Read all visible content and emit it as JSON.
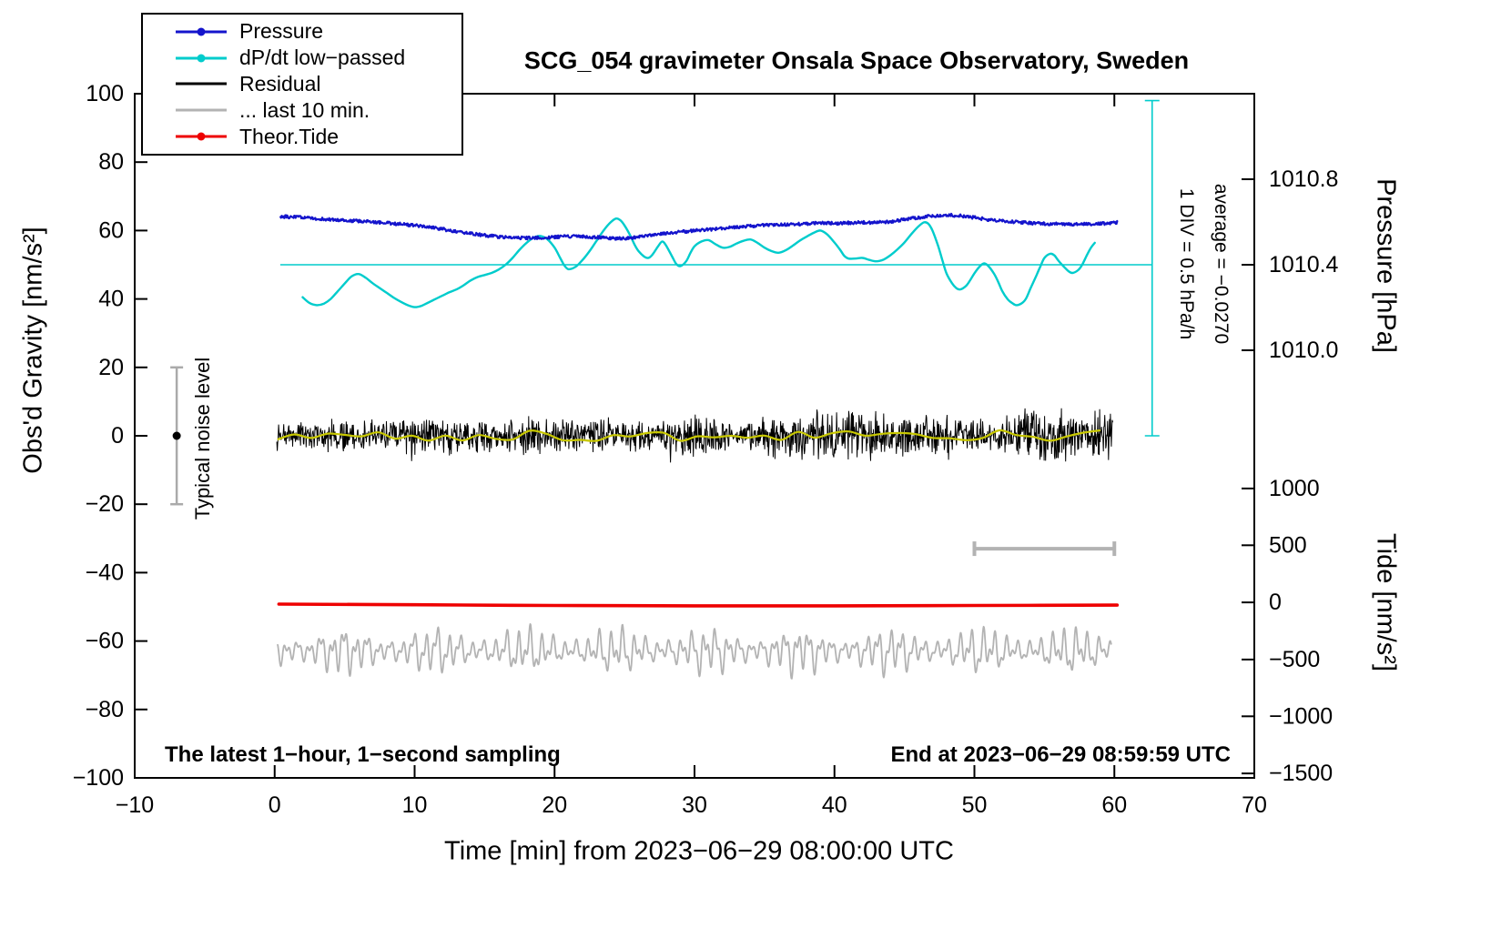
{
  "title": "SCG_054 gravimeter Onsala Space Observatory, Sweden",
  "texts": {
    "xlabel": "Time [min] from 2023−06−29 08:00:00 UTC",
    "ylabel_left": "Obs'd Gravity [nm/s²]",
    "footer_left": "The latest 1−hour, 1−second sampling",
    "footer_right": "End at 2023−06−29 08:59:59 UTC"
  },
  "legend": {
    "items": [
      {
        "label": "Pressure",
        "color": "#1414cc",
        "marker": true
      },
      {
        "label": "dP/dt low−passed",
        "color": "#00cccc",
        "marker": true
      },
      {
        "label": "Residual",
        "color": "#000000",
        "marker": false
      },
      {
        "label": "... last 10 min.",
        "color": "#b3b3b3",
        "marker": false
      },
      {
        "label": "Theor.Tide",
        "color": "#ee0000",
        "marker": true
      }
    ]
  },
  "chart_data": {
    "type": "line",
    "title": "SCG_054 gravimeter Onsala Space Observatory, Sweden",
    "xlabel": "Time [min] from 2023−06−29 08:00:00 UTC",
    "ylabel": "Obs'd Gravity [nm/s²]",
    "xlim": [
      -10,
      70
    ],
    "ylim": [
      -100,
      100
    ],
    "grid": false,
    "legend_position": "top-left",
    "x_ticks": [
      {
        "v": -10,
        "label": "−10"
      },
      {
        "v": 0,
        "label": "0"
      },
      {
        "v": 10,
        "label": "10"
      },
      {
        "v": 20,
        "label": "20"
      },
      {
        "v": 30,
        "label": "30"
      },
      {
        "v": 40,
        "label": "40"
      },
      {
        "v": 50,
        "label": "50"
      },
      {
        "v": 60,
        "label": "60"
      },
      {
        "v": 70,
        "label": "70"
      }
    ],
    "y_ticks": [
      {
        "v": 100,
        "label": "100"
      },
      {
        "v": 80,
        "label": "80"
      },
      {
        "v": 60,
        "label": "60"
      },
      {
        "v": 40,
        "label": "40"
      },
      {
        "v": 20,
        "label": "20"
      },
      {
        "v": 0,
        "label": "0"
      },
      {
        "v": -20,
        "label": "−20"
      },
      {
        "v": -40,
        "label": "−40"
      },
      {
        "v": -60,
        "label": "−60"
      },
      {
        "v": -80,
        "label": "−80"
      },
      {
        "v": -100,
        "label": "−100"
      }
    ],
    "pressure_axis": {
      "title": "Pressure [hPa]",
      "ticks": [
        {
          "gravity": 75,
          "label": "1010.8"
        },
        {
          "gravity": 50,
          "label": "1010.4"
        },
        {
          "gravity": 25,
          "label": "1010.0"
        }
      ]
    },
    "tide_axis": {
      "title": "Tide [nm/s²]",
      "ticks": [
        {
          "gravity": -15.4,
          "label": "1000"
        },
        {
          "gravity": -32.0,
          "label": "500"
        },
        {
          "gravity": -48.7,
          "label": "0"
        },
        {
          "gravity": -65.4,
          "label": "−500"
        },
        {
          "gravity": -82.0,
          "label": "−1000"
        },
        {
          "gravity": -98.7,
          "label": "−1500"
        }
      ]
    },
    "annotations": {
      "div_scale": "1 DIV = 0.5 hPa/h",
      "average": "average = −0.0270",
      "noise_label": "Typical noise level",
      "noise_bar": {
        "x": -7,
        "from": -20,
        "to": 20,
        "dot": 0,
        "color": "#aaaaaa"
      },
      "window_bar": {
        "x_from": 50,
        "x_to": 60,
        "gravity": -33,
        "color": "#b3b3b3"
      },
      "dpdt_marker": {
        "x": 62.7,
        "g_from": 0,
        "g_to": 98,
        "color": "#00cccc"
      },
      "dpdt_ref_line": {
        "gravity": 50,
        "x_from": 0.4,
        "x_to": 62.7,
        "color": "#00cccc"
      }
    },
    "series": {
      "pressure": {
        "name": "Pressure",
        "color": "#1414cc",
        "width": 2.2,
        "noise_amp": 0.45,
        "noise_seed": 6,
        "points": [
          [
            0.4,
            64.2
          ],
          [
            1,
            64.0
          ],
          [
            2,
            63.8
          ],
          [
            3,
            63.5
          ],
          [
            4,
            63.2
          ],
          [
            5,
            63.0
          ],
          [
            6,
            62.8
          ],
          [
            7,
            62.5
          ],
          [
            8,
            62.2
          ],
          [
            9,
            61.9
          ],
          [
            10,
            61.5
          ],
          [
            11,
            61.0
          ],
          [
            12,
            60.4
          ],
          [
            13,
            59.7
          ],
          [
            14,
            59.1
          ],
          [
            15,
            58.6
          ],
          [
            16,
            58.2
          ],
          [
            17,
            57.9
          ],
          [
            18,
            57.8
          ],
          [
            19,
            57.9
          ],
          [
            20,
            58.1
          ],
          [
            21,
            58.3
          ],
          [
            22,
            58.3
          ],
          [
            23,
            58.0
          ],
          [
            24,
            57.8
          ],
          [
            25,
            57.6
          ],
          [
            26,
            58.1
          ],
          [
            27,
            58.7
          ],
          [
            28,
            59.2
          ],
          [
            29,
            59.6
          ],
          [
            30,
            60.0
          ],
          [
            31,
            60.3
          ],
          [
            32,
            60.6
          ],
          [
            33,
            61.0
          ],
          [
            34,
            61.3
          ],
          [
            35,
            61.6
          ],
          [
            36,
            61.8
          ],
          [
            37,
            61.8
          ],
          [
            38,
            62.0
          ],
          [
            39,
            62.2
          ],
          [
            40,
            62.1
          ],
          [
            41,
            62.2
          ],
          [
            42,
            62.4
          ],
          [
            43,
            62.3
          ],
          [
            44,
            62.6
          ],
          [
            45,
            63.2
          ],
          [
            46,
            63.8
          ],
          [
            47,
            64.3
          ],
          [
            48,
            64.6
          ],
          [
            49,
            64.3
          ],
          [
            50,
            63.8
          ],
          [
            51,
            63.2
          ],
          [
            52,
            62.8
          ],
          [
            53,
            62.5
          ],
          [
            54,
            62.2
          ],
          [
            55,
            62.0
          ],
          [
            56,
            61.9
          ],
          [
            57,
            61.8
          ],
          [
            58,
            61.9
          ],
          [
            59,
            62.0
          ],
          [
            60.2,
            62.4
          ]
        ]
      },
      "dpdt": {
        "name": "dP/dt low−passed",
        "color": "#00cccc",
        "width": 2.4,
        "points": [
          [
            2,
            40.5
          ],
          [
            2.5,
            38.8
          ],
          [
            3,
            38.2
          ],
          [
            3.5,
            38.6
          ],
          [
            4,
            40
          ],
          [
            4.5,
            42.2
          ],
          [
            5,
            44.5
          ],
          [
            5.5,
            46.6
          ],
          [
            6,
            47.3
          ],
          [
            6.5,
            46.2
          ],
          [
            7,
            44.6
          ],
          [
            7.5,
            43.2
          ],
          [
            8,
            41.8
          ],
          [
            8.5,
            40.4
          ],
          [
            9,
            39.2
          ],
          [
            9.5,
            38.2
          ],
          [
            10,
            37.6
          ],
          [
            10.5,
            38
          ],
          [
            11,
            39
          ],
          [
            11.5,
            40
          ],
          [
            12,
            41
          ],
          [
            12.5,
            42
          ],
          [
            13,
            42.8
          ],
          [
            13.5,
            44
          ],
          [
            14,
            45.4
          ],
          [
            14.5,
            46.4
          ],
          [
            15,
            47
          ],
          [
            15.5,
            47.6
          ],
          [
            16,
            48.6
          ],
          [
            16.5,
            50
          ],
          [
            17,
            52
          ],
          [
            17.5,
            54.4
          ],
          [
            18,
            56.4
          ],
          [
            18.5,
            57.9
          ],
          [
            19,
            58.4
          ],
          [
            19.5,
            57.4
          ],
          [
            20,
            55
          ],
          [
            20.4,
            52
          ],
          [
            20.7,
            49.8
          ],
          [
            21,
            48.7
          ],
          [
            21.5,
            49.4
          ],
          [
            22,
            51.4
          ],
          [
            22.5,
            54
          ],
          [
            23,
            57
          ],
          [
            23.5,
            60
          ],
          [
            24,
            62.4
          ],
          [
            24.4,
            63.5
          ],
          [
            24.7,
            63
          ],
          [
            25,
            61.5
          ],
          [
            25.4,
            58.6
          ],
          [
            25.7,
            56
          ],
          [
            26,
            54
          ],
          [
            26.4,
            52.4
          ],
          [
            26.7,
            52
          ],
          [
            27,
            53
          ],
          [
            27.4,
            55.4
          ],
          [
            27.7,
            56.8
          ],
          [
            28,
            55.4
          ],
          [
            28.4,
            52.4
          ],
          [
            28.7,
            50.2
          ],
          [
            29,
            49.6
          ],
          [
            29.4,
            51
          ],
          [
            29.7,
            53.4
          ],
          [
            30,
            55.4
          ],
          [
            30.5,
            56.8
          ],
          [
            31,
            57.2
          ],
          [
            31.5,
            56
          ],
          [
            32,
            55
          ],
          [
            32.5,
            55.2
          ],
          [
            33,
            56.2
          ],
          [
            33.5,
            57
          ],
          [
            34,
            57.4
          ],
          [
            34.5,
            56.4
          ],
          [
            35,
            55
          ],
          [
            35.5,
            54
          ],
          [
            36,
            53.5
          ],
          [
            36.5,
            54.2
          ],
          [
            37,
            55.5
          ],
          [
            37.5,
            57
          ],
          [
            38,
            58.2
          ],
          [
            38.5,
            59.3
          ],
          [
            39,
            60
          ],
          [
            39.5,
            58.8
          ],
          [
            40,
            56.5
          ],
          [
            40.4,
            54.4
          ],
          [
            40.7,
            52.6
          ],
          [
            41,
            51.8
          ],
          [
            41.5,
            51.8
          ],
          [
            42,
            52
          ],
          [
            42.5,
            51.4
          ],
          [
            43,
            51
          ],
          [
            43.5,
            51.5
          ],
          [
            44,
            52.8
          ],
          [
            44.5,
            54.5
          ],
          [
            45,
            56.5
          ],
          [
            45.5,
            59
          ],
          [
            46,
            61.2
          ],
          [
            46.4,
            62.4
          ],
          [
            46.7,
            62
          ],
          [
            47,
            60
          ],
          [
            47.4,
            55.6
          ],
          [
            47.7,
            51.5
          ],
          [
            48,
            47.5
          ],
          [
            48.4,
            44.6
          ],
          [
            48.7,
            43.2
          ],
          [
            49,
            42.8
          ],
          [
            49.4,
            43.8
          ],
          [
            49.7,
            45.5
          ],
          [
            50,
            47.5
          ],
          [
            50.4,
            49.6
          ],
          [
            50.7,
            50.4
          ],
          [
            51,
            49.6
          ],
          [
            51.4,
            47.4
          ],
          [
            51.7,
            45
          ],
          [
            52,
            42.2
          ],
          [
            52.4,
            39.8
          ],
          [
            52.7,
            38.8
          ],
          [
            53,
            38.2
          ],
          [
            53.4,
            38.8
          ],
          [
            53.7,
            40.2
          ],
          [
            54,
            43
          ],
          [
            54.4,
            46.6
          ],
          [
            54.7,
            49.4
          ],
          [
            55,
            52
          ],
          [
            55.4,
            53.2
          ],
          [
            55.7,
            52.8
          ],
          [
            56,
            51.2
          ],
          [
            56.4,
            49.4
          ],
          [
            56.7,
            48.2
          ],
          [
            57,
            47.6
          ],
          [
            57.4,
            48.4
          ],
          [
            57.7,
            50
          ],
          [
            58,
            52.5
          ],
          [
            58.3,
            54.8
          ],
          [
            58.6,
            56.4
          ]
        ]
      },
      "residual": {
        "name": "Residual",
        "color": "#000000",
        "width": 1,
        "center": 0,
        "seed": 29,
        "x_from": 0.15,
        "x_to": 59.9,
        "env_min": 2.8,
        "env_span": 3.4,
        "spike_prob": 0.006,
        "spike_gain": 2.1
      },
      "residual_smooth": {
        "name": "residual low-passed",
        "color": "#c8c800",
        "width": 2.2,
        "center": 0,
        "amp": 1.6,
        "seed": 8,
        "x_from": 0.2,
        "x_to": 59.8
      },
      "last10": {
        "name": "... last 10 min.",
        "color": "#b3b3b3",
        "width": 1.8,
        "center": -62.8,
        "seed": 54,
        "x_from": 0.2,
        "x_to": 59.8,
        "harmonics": [
          [
            4.2,
            0.83
          ],
          [
            2.8,
            0.41
          ],
          [
            1.6,
            1.65
          ]
        ],
        "mod_period": 6.5,
        "mod_depth": 0.3
      },
      "tide": {
        "name": "Theor.Tide",
        "color": "#ee0000",
        "width": 3.6,
        "points": [
          [
            0.3,
            -49.2
          ],
          [
            10,
            -49.4
          ],
          [
            20,
            -49.6
          ],
          [
            30,
            -49.7
          ],
          [
            40,
            -49.7
          ],
          [
            50,
            -49.6
          ],
          [
            60.2,
            -49.5
          ]
        ]
      }
    }
  }
}
